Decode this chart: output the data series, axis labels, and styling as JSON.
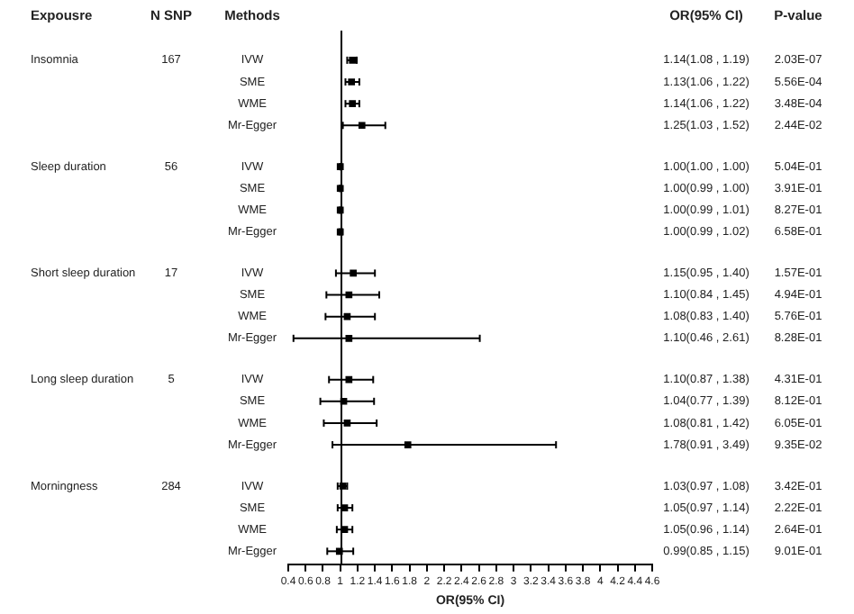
{
  "chart_data": {
    "type": "scatter",
    "orientation": "horizontal",
    "marker": "square",
    "grid": false,
    "xlabel": "OR(95% CI)",
    "categories": [
      "IVW",
      "SME",
      "WME",
      "Mr-Egger",
      "IVW",
      "SME",
      "WME",
      "Mr-Egger",
      "IVW",
      "SME",
      "WME",
      "Mr-Egger",
      "IVW",
      "SME",
      "WME",
      "Mr-Egger",
      "IVW",
      "SME",
      "WME",
      "Mr-Egger"
    ],
    "values": [
      1.14,
      1.13,
      1.14,
      1.25,
      1.0,
      1.0,
      1.0,
      1.0,
      1.15,
      1.1,
      1.08,
      1.1,
      1.1,
      1.04,
      1.08,
      1.78,
      1.03,
      1.05,
      1.05,
      0.99
    ],
    "errors": [
      [
        1.08,
        1.19
      ],
      [
        1.06,
        1.22
      ],
      [
        1.06,
        1.22
      ],
      [
        1.03,
        1.52
      ],
      [
        1.0,
        1.0
      ],
      [
        0.99,
        1.0
      ],
      [
        0.99,
        1.01
      ],
      [
        0.99,
        1.02
      ],
      [
        0.95,
        1.4
      ],
      [
        0.84,
        1.45
      ],
      [
        0.83,
        1.4
      ],
      [
        0.46,
        2.61
      ],
      [
        0.87,
        1.38
      ],
      [
        0.77,
        1.39
      ],
      [
        0.81,
        1.42
      ],
      [
        0.91,
        3.49
      ],
      [
        0.97,
        1.08
      ],
      [
        0.97,
        1.14
      ],
      [
        0.96,
        1.14
      ],
      [
        0.85,
        1.15
      ]
    ],
    "value_labels": [
      "1.14(1.08 , 1.19)",
      "1.13(1.06 , 1.22)",
      "1.14(1.06 , 1.22)",
      "1.25(1.03 , 1.52)",
      "1.00(1.00 , 1.00)",
      "1.00(0.99 , 1.00)",
      "1.00(0.99 , 1.01)",
      "1.00(0.99 , 1.02)",
      "1.15(0.95 , 1.40)",
      "1.10(0.84 , 1.45)",
      "1.08(0.83 , 1.40)",
      "1.10(0.46 , 2.61)",
      "1.10(0.87 , 1.38)",
      "1.04(0.77 , 1.39)",
      "1.08(0.81 , 1.42)",
      "1.78(0.91 , 3.49)",
      "1.03(0.97 , 1.08)",
      "1.05(0.97 , 1.14)",
      "1.05(0.96 , 1.14)",
      "0.99(0.85 , 1.15)"
    ],
    "color": "#000000",
    "xlim": [
      0.4,
      4.6
    ],
    "xticks": [
      0.4,
      0.6,
      0.8,
      1,
      1.2,
      1.4,
      1.6,
      1.8,
      2,
      2.2,
      2.4,
      2.6,
      2.8,
      3,
      3.2,
      3.4,
      3.6,
      3.8,
      4,
      4.2,
      4.4,
      4.6
    ],
    "ref_lines": [
      {
        "axis": "x",
        "value": 1,
        "color": "#000000"
      }
    ],
    "annotations": [
      "Expousre",
      "N SNP",
      "Methods",
      "OR(95% CI)",
      "P-value",
      "Insomnia",
      "167",
      "Sleep duration",
      "56",
      "Short sleep duration",
      "17",
      "Long sleep duration",
      "5",
      "Morningness",
      "284",
      "2.03E-07",
      "5.56E-04",
      "3.48E-04",
      "2.44E-02",
      "5.04E-01",
      "3.91E-01",
      "8.27E-01",
      "6.58E-01",
      "1.57E-01",
      "4.94E-01",
      "5.76E-01",
      "8.28E-01",
      "4.31E-01",
      "8.12E-01",
      "6.05E-01",
      "9.35E-02",
      "3.42E-01",
      "2.22E-01",
      "2.64E-01",
      "9.01E-01"
    ]
  }
}
